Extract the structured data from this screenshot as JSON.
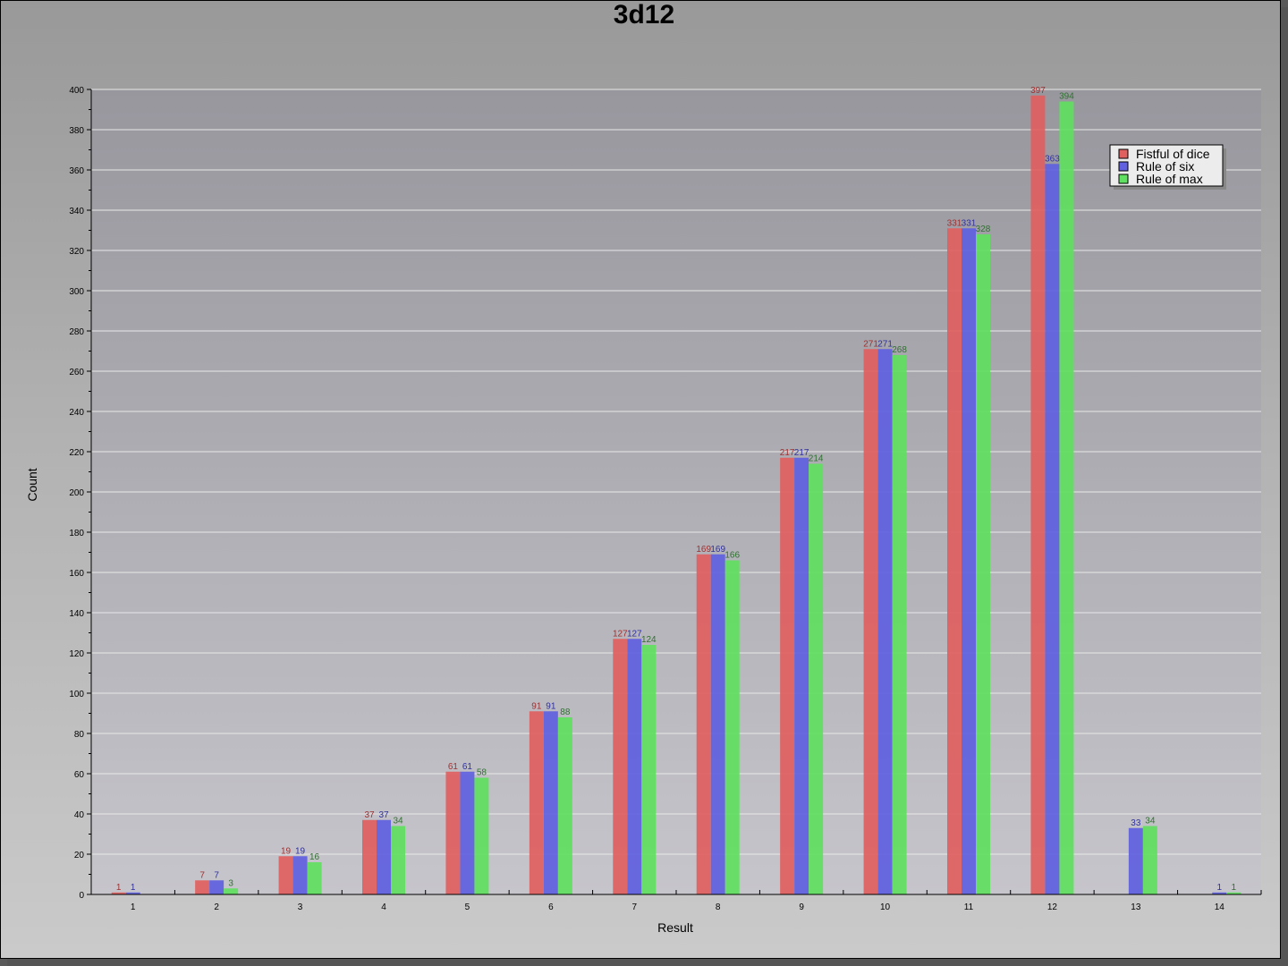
{
  "chart_data": {
    "type": "bar",
    "title": "3d12",
    "xlabel": "Result",
    "ylabel": "Count",
    "categories": [
      "1",
      "2",
      "3",
      "4",
      "5",
      "6",
      "7",
      "8",
      "9",
      "10",
      "11",
      "12",
      "13",
      "14"
    ],
    "ylim": [
      0,
      400
    ],
    "yticks": [
      0,
      20,
      40,
      60,
      80,
      100,
      120,
      140,
      160,
      180,
      200,
      220,
      240,
      260,
      280,
      300,
      320,
      340,
      360,
      380,
      400
    ],
    "grid": true,
    "legend": "top-right",
    "series": [
      {
        "name": "Fistful of dice",
        "color": "#e06060",
        "label_color": "#a03030",
        "values": [
          1,
          7,
          19,
          37,
          61,
          91,
          127,
          169,
          217,
          271,
          331,
          397,
          0,
          0
        ]
      },
      {
        "name": "Rule of six",
        "color": "#6060e0",
        "label_color": "#3030a0",
        "values": [
          1,
          7,
          19,
          37,
          61,
          91,
          127,
          169,
          217,
          271,
          331,
          363,
          33,
          1
        ]
      },
      {
        "name": "Rule of max",
        "color": "#60e060",
        "label_color": "#307030",
        "values": [
          0,
          3,
          16,
          34,
          58,
          88,
          124,
          166,
          214,
          268,
          328,
          394,
          34,
          1
        ]
      }
    ]
  }
}
